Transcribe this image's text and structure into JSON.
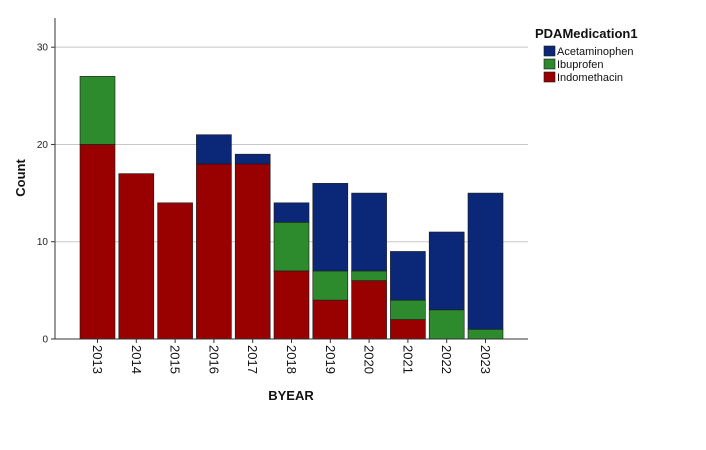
{
  "chart_data": {
    "type": "bar",
    "stacked": true,
    "xlabel": "BYEAR",
    "ylabel": "Count",
    "ylim": [
      0,
      33
    ],
    "yticks": [
      0,
      10,
      20,
      30
    ],
    "grid": true,
    "legend_title": "PDAMedication1",
    "legend_position": "top-right",
    "categories": [
      "2013",
      "2014",
      "2015",
      "2016",
      "2017",
      "2018",
      "2019",
      "2020",
      "2021",
      "2022",
      "2023"
    ],
    "series": [
      {
        "name": "Indomethacin",
        "color": "#990000",
        "values": [
          20,
          17,
          14,
          18,
          18,
          7,
          4,
          6,
          2,
          0,
          0
        ]
      },
      {
        "name": "Ibuprofen",
        "color": "#2d8a2d",
        "values": [
          7,
          0,
          0,
          0,
          0,
          5,
          3,
          1,
          2,
          3,
          1
        ]
      },
      {
        "name": "Acetaminophen",
        "color": "#0b2778",
        "values": [
          0,
          0,
          0,
          3,
          1,
          2,
          9,
          8,
          5,
          8,
          14
        ]
      }
    ],
    "legend_order": [
      "Acetaminophen",
      "Ibuprofen",
      "Indomethacin"
    ]
  }
}
